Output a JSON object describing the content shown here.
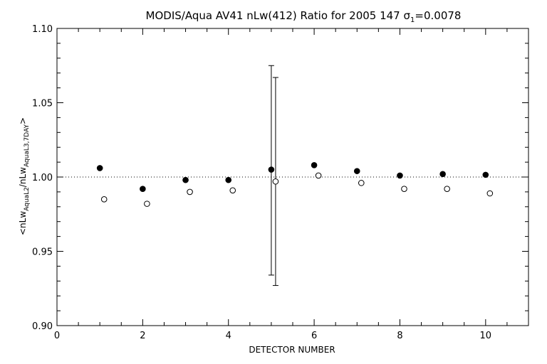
{
  "chart_data": {
    "type": "scatter",
    "title": {
      "prefix": "MODIS/Aqua AV41 nLw(412) Ratio for 2005 147 ",
      "sigma_symbol": "σ",
      "sigma_subscript": "1",
      "sigma_value": "=0.0078"
    },
    "xlabel": "DETECTOR NUMBER",
    "ylabel": {
      "open": "<nLw",
      "sub1": "AquaL2",
      "mid": "/nLw",
      "sub2": "AquaL3,7DAY",
      "close": ">"
    },
    "xlim": [
      0,
      11
    ],
    "ylim": [
      0.9,
      1.1
    ],
    "x_ticks": [
      0,
      2,
      4,
      6,
      8,
      10
    ],
    "y_ticks": [
      0.9,
      0.95,
      1.0,
      1.05,
      1.1
    ],
    "x_tick_labels": [
      "0",
      "2",
      "4",
      "6",
      "8",
      "10"
    ],
    "y_tick_labels": [
      "0.90",
      "0.95",
      "1.00",
      "1.05",
      "1.10"
    ],
    "x_minor_step": 0.5,
    "y_minor_step": 0.01,
    "reference_line": {
      "y": 1.0,
      "style": "dotted"
    },
    "series": [
      {
        "marker": "filled-circle",
        "x": [
          1,
          2,
          3,
          4,
          5,
          6,
          7,
          8,
          9,
          10
        ],
        "y": [
          1.006,
          0.992,
          0.998,
          0.998,
          1.005,
          1.008,
          1.004,
          1.001,
          1.002,
          1.0015
        ]
      },
      {
        "marker": "open-circle",
        "x": [
          1.1,
          2.1,
          3.1,
          4.1,
          5.1,
          6.1,
          7.1,
          8.1,
          9.1,
          10.1
        ],
        "y": [
          0.985,
          0.982,
          0.99,
          0.991,
          0.997,
          1.001,
          0.996,
          0.992,
          0.992,
          0.989
        ]
      }
    ],
    "error_bars": [
      {
        "x": 5.0,
        "low": 0.934,
        "high": 1.075
      },
      {
        "x": 5.1,
        "low": 0.927,
        "high": 1.067
      }
    ]
  }
}
